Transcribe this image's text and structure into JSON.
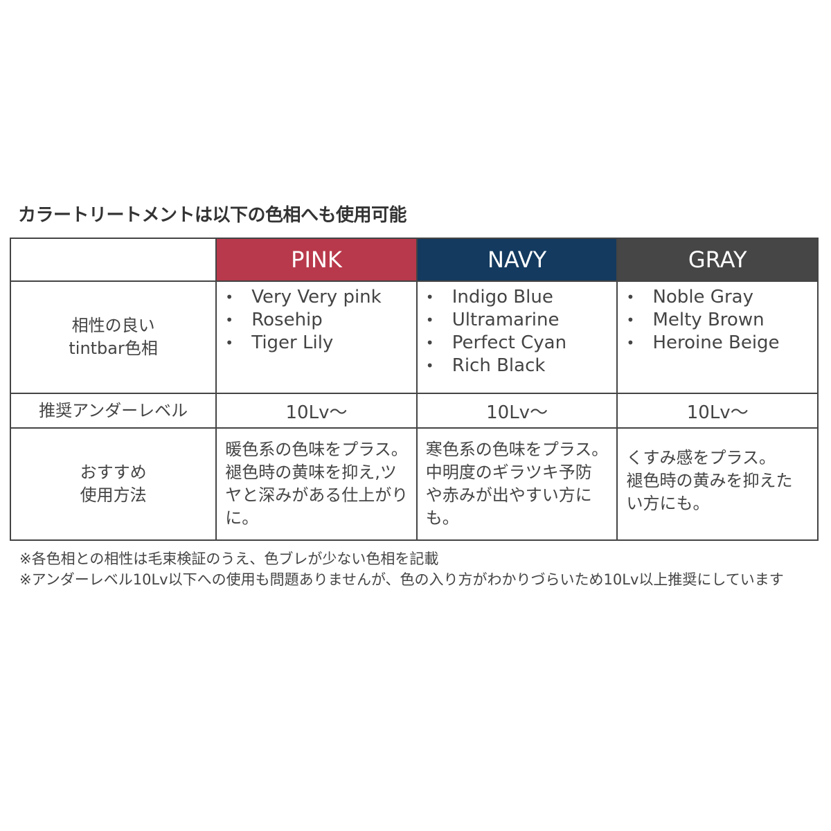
{
  "title": "カラートリートメントは以下の色相へも使用可能",
  "table": {
    "columns": [
      {
        "label": "PINK",
        "color": "#b8394b"
      },
      {
        "label": "NAVY",
        "color": "#143a5f"
      },
      {
        "label": "GRAY",
        "color": "#464646"
      }
    ],
    "row_labels": {
      "compatible": [
        "相性の良い",
        "tintbar色相"
      ],
      "under_level": "推奨アンダーレベル",
      "usage": [
        "おすすめ",
        "使用方法"
      ]
    },
    "compatible": [
      [
        "Very Very pink",
        "Rosehip",
        "Tiger Lily"
      ],
      [
        "Indigo Blue",
        "Ultramarine",
        "Perfect Cyan",
        "Rich Black"
      ],
      [
        "Noble Gray",
        "Melty Brown",
        "Heroine Beige"
      ]
    ],
    "under_level": [
      "10Lv〜",
      "10Lv〜",
      "10Lv〜"
    ],
    "usage": [
      [
        "暖色系の色味をプラス。",
        "褪色時の黄味を抑え,ツ",
        "ヤと深みがある仕上がり",
        "に。"
      ],
      [
        "寒色系の色味をプラス。",
        "中明度のギラツキ予防",
        "や赤みが出やすい方に",
        "も。"
      ],
      [
        "くすみ感をプラス。",
        "褪色時の黄みを抑えた",
        "い方にも。"
      ]
    ]
  },
  "notes": [
    "※各色相との相性は毛束検証のうえ、色ブレが少ない色相を記載",
    "※アンダーレベル10Lv以下への使用も問題ありませんが、色の入り方がわかりづらいため10Lv以上推奨にしています"
  ]
}
